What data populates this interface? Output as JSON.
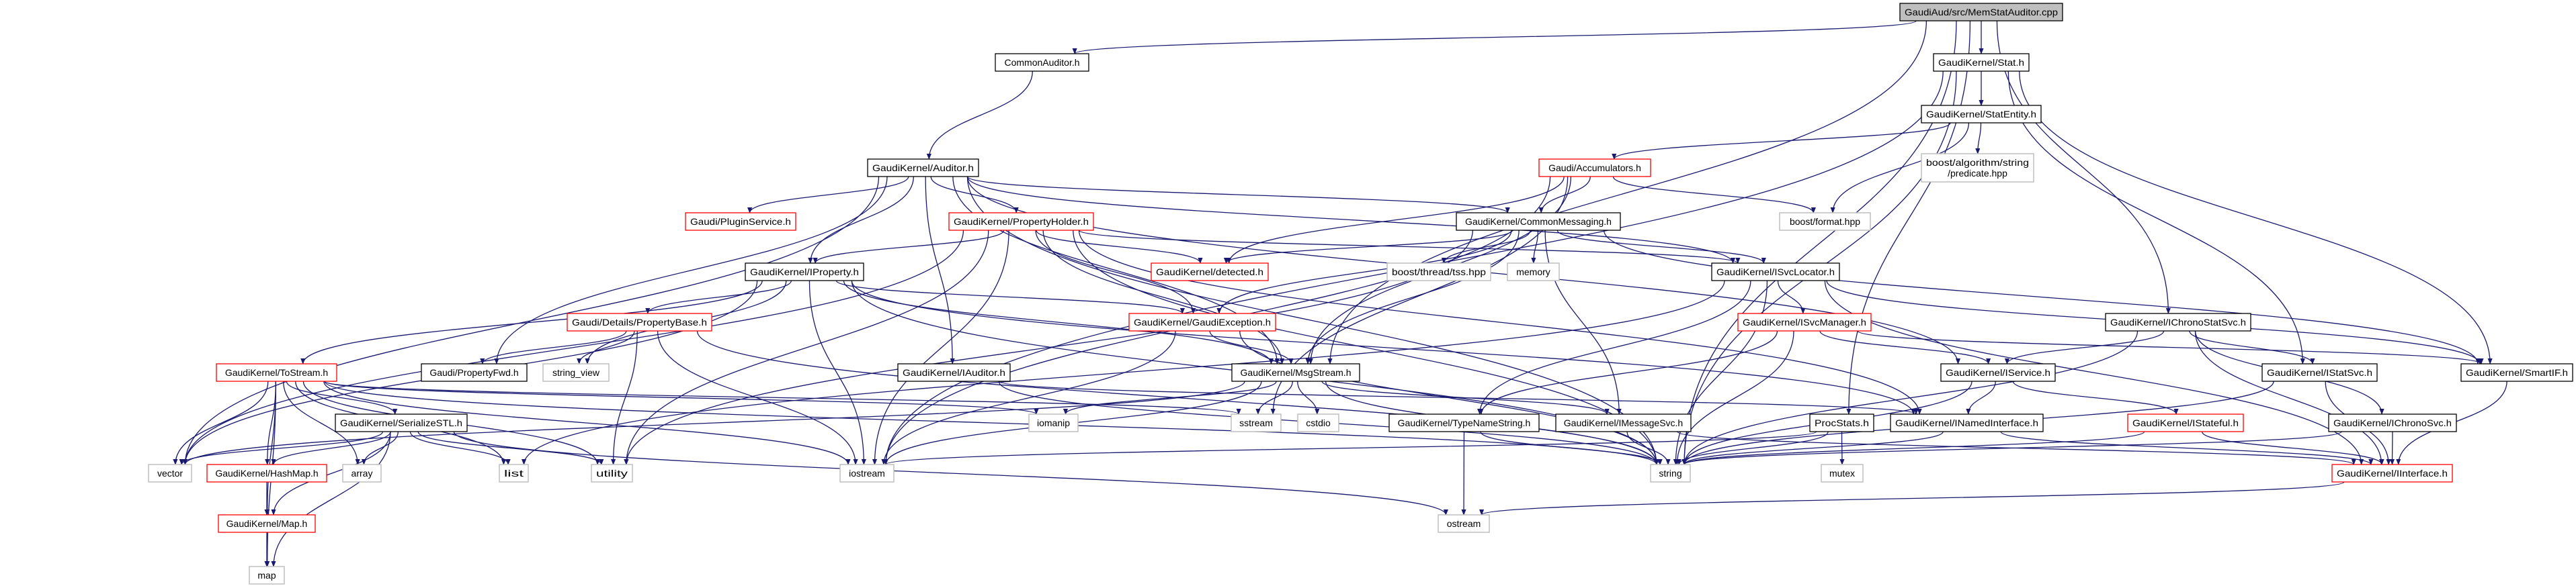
{
  "graph": {
    "colors": {
      "edge": "#191970",
      "root_fill": "#bfbfbf",
      "node_border": "#000000",
      "incomplete_border": "#ff0000",
      "external_border": "#bfbfbf"
    },
    "nodes": [
      {
        "id": "memstat",
        "label": "GaudiAud/src/MemStatAuditor.cpp",
        "kind": "root"
      },
      {
        "id": "commonauditor",
        "label": "CommonAuditor.h",
        "kind": "normal"
      },
      {
        "id": "stat",
        "label": "GaudiKernel/Stat.h",
        "kind": "normal"
      },
      {
        "id": "statentity",
        "label": "GaudiKernel/StatEntity.h",
        "kind": "normal"
      },
      {
        "id": "auditor",
        "label": "GaudiKernel/Auditor.h",
        "kind": "normal"
      },
      {
        "id": "accumulators",
        "label": "Gaudi/Accumulators.h",
        "kind": "incomplete"
      },
      {
        "id": "predicate",
        "label": "boost/algorithm/string\n/predicate.hpp",
        "kind": "external"
      },
      {
        "id": "pluginservice",
        "label": "Gaudi/PluginService.h",
        "kind": "incomplete"
      },
      {
        "id": "propertyholder",
        "label": "GaudiKernel/PropertyHolder.h",
        "kind": "incomplete"
      },
      {
        "id": "commonmessaging",
        "label": "GaudiKernel/CommonMessaging.h",
        "kind": "normal"
      },
      {
        "id": "boostformat",
        "label": "boost/format.hpp",
        "kind": "external"
      },
      {
        "id": "iproperty",
        "label": "GaudiKernel/IProperty.h",
        "kind": "normal"
      },
      {
        "id": "detected",
        "label": "GaudiKernel/detected.h",
        "kind": "incomplete"
      },
      {
        "id": "tss",
        "label": "boost/thread/tss.hpp",
        "kind": "external"
      },
      {
        "id": "memory",
        "label": "memory",
        "kind": "external"
      },
      {
        "id": "isvclocator",
        "label": "GaudiKernel/ISvcLocator.h",
        "kind": "normal"
      },
      {
        "id": "ichronostatsvc",
        "label": "GaudiKernel/IChronoStatSvc.h",
        "kind": "normal"
      },
      {
        "id": "propertybase",
        "label": "Gaudi/Details/PropertyBase.h",
        "kind": "incomplete"
      },
      {
        "id": "gaudiexception",
        "label": "GaudiKernel/GaudiException.h",
        "kind": "incomplete"
      },
      {
        "id": "isvcmanager",
        "label": "GaudiKernel/ISvcManager.h",
        "kind": "incomplete"
      },
      {
        "id": "tostream",
        "label": "GaudiKernel/ToStream.h",
        "kind": "incomplete"
      },
      {
        "id": "propertyfwd",
        "label": "Gaudi/PropertyFwd.h",
        "kind": "normal"
      },
      {
        "id": "string_view",
        "label": "string_view",
        "kind": "external"
      },
      {
        "id": "iauditor",
        "label": "GaudiKernel/IAuditor.h",
        "kind": "normal"
      },
      {
        "id": "msgstream",
        "label": "GaudiKernel/MsgStream.h",
        "kind": "normal"
      },
      {
        "id": "iservice",
        "label": "GaudiKernel/IService.h",
        "kind": "normal"
      },
      {
        "id": "istatsvc",
        "label": "GaudiKernel/IStatSvc.h",
        "kind": "normal"
      },
      {
        "id": "smartif",
        "label": "GaudiKernel/SmartIF.h",
        "kind": "normal"
      },
      {
        "id": "serializestl",
        "label": "GaudiKernel/SerializeSTL.h",
        "kind": "normal"
      },
      {
        "id": "iomanip",
        "label": "iomanip",
        "kind": "external"
      },
      {
        "id": "sstream",
        "label": "sstream",
        "kind": "external"
      },
      {
        "id": "cstdio",
        "label": "cstdio",
        "kind": "external"
      },
      {
        "id": "typenamestring",
        "label": "GaudiKernel/TypeNameString.h",
        "kind": "normal"
      },
      {
        "id": "imessagesvc",
        "label": "GaudiKernel/IMessageSvc.h",
        "kind": "normal"
      },
      {
        "id": "procstats",
        "label": "ProcStats.h",
        "kind": "normal"
      },
      {
        "id": "inamedinterface",
        "label": "GaudiKernel/INamedInterface.h",
        "kind": "normal"
      },
      {
        "id": "istateful",
        "label": "GaudiKernel/IStateful.h",
        "kind": "incomplete"
      },
      {
        "id": "ichronosvc",
        "label": "GaudiKernel/IChronoSvc.h",
        "kind": "normal"
      },
      {
        "id": "vector",
        "label": "vector",
        "kind": "external"
      },
      {
        "id": "hashmap",
        "label": "GaudiKernel/HashMap.h",
        "kind": "incomplete"
      },
      {
        "id": "array",
        "label": "array",
        "kind": "external"
      },
      {
        "id": "list",
        "label": "list",
        "kind": "external"
      },
      {
        "id": "utility",
        "label": "utility",
        "kind": "external"
      },
      {
        "id": "iostream",
        "label": "iostream",
        "kind": "external"
      },
      {
        "id": "string",
        "label": "string",
        "kind": "external"
      },
      {
        "id": "mutex",
        "label": "mutex",
        "kind": "external"
      },
      {
        "id": "iinterface",
        "label": "GaudiKernel/IInterface.h",
        "kind": "incomplete"
      },
      {
        "id": "map_h",
        "label": "GaudiKernel/Map.h",
        "kind": "incomplete"
      },
      {
        "id": "ostream",
        "label": "ostream",
        "kind": "external"
      },
      {
        "id": "map",
        "label": "map",
        "kind": "external"
      }
    ],
    "edges": [
      [
        "memstat",
        "commonauditor"
      ],
      [
        "memstat",
        "stat"
      ],
      [
        "memstat",
        "msgstream"
      ],
      [
        "memstat",
        "ichronostatsvc"
      ],
      [
        "memstat",
        "procstats"
      ],
      [
        "memstat",
        "string"
      ],
      [
        "commonauditor",
        "auditor"
      ],
      [
        "stat",
        "statentity"
      ],
      [
        "stat",
        "iostream"
      ],
      [
        "stat",
        "string"
      ],
      [
        "stat",
        "istatsvc"
      ],
      [
        "stat",
        "smartif"
      ],
      [
        "statentity",
        "accumulators"
      ],
      [
        "statentity",
        "predicate"
      ],
      [
        "statentity",
        "boostformat"
      ],
      [
        "accumulators",
        "commonmessaging"
      ],
      [
        "accumulators",
        "boostformat"
      ],
      [
        "accumulators",
        "detected"
      ],
      [
        "accumulators",
        "iostream"
      ],
      [
        "accumulators",
        "msgstream"
      ],
      [
        "accumulators",
        "sstream"
      ],
      [
        "auditor",
        "vector"
      ],
      [
        "auditor",
        "pluginservice"
      ],
      [
        "auditor",
        "propertyfwd"
      ],
      [
        "auditor",
        "iproperty"
      ],
      [
        "auditor",
        "propertyholder"
      ],
      [
        "auditor",
        "iauditor"
      ],
      [
        "auditor",
        "commonmessaging"
      ],
      [
        "auditor",
        "isvclocator"
      ],
      [
        "auditor",
        "iservice"
      ],
      [
        "auditor",
        "string"
      ],
      [
        "auditor",
        "msgstream"
      ],
      [
        "propertyholder",
        "iproperty"
      ],
      [
        "propertyholder",
        "detected"
      ],
      [
        "propertyholder",
        "gaudiexception"
      ],
      [
        "propertyholder",
        "msgstream"
      ],
      [
        "propertyholder",
        "inamedinterface"
      ],
      [
        "propertyholder",
        "iostream"
      ],
      [
        "propertyholder",
        "string"
      ],
      [
        "propertyholder",
        "utility"
      ],
      [
        "propertyholder",
        "isvclocator"
      ],
      [
        "propertyholder",
        "vector"
      ],
      [
        "commonmessaging",
        "detected"
      ],
      [
        "commonmessaging",
        "tss"
      ],
      [
        "commonmessaging",
        "memory"
      ],
      [
        "commonmessaging",
        "isvclocator"
      ],
      [
        "commonmessaging",
        "imessagesvc"
      ],
      [
        "commonmessaging",
        "msgstream"
      ],
      [
        "commonmessaging",
        "smartif"
      ],
      [
        "commonmessaging",
        "gaudiexception"
      ],
      [
        "commonmessaging",
        "utility"
      ],
      [
        "iproperty",
        "propertybase"
      ],
      [
        "iproperty",
        "tostream"
      ],
      [
        "iproperty",
        "vector"
      ],
      [
        "iproperty",
        "iostream"
      ],
      [
        "iproperty",
        "string"
      ],
      [
        "iproperty",
        "string_view"
      ],
      [
        "iproperty",
        "inamedinterface"
      ],
      [
        "iproperty",
        "msgstream"
      ],
      [
        "iproperty",
        "gaudiexception"
      ],
      [
        "isvclocator",
        "isvcmanager"
      ],
      [
        "isvclocator",
        "typenamestring"
      ],
      [
        "isvclocator",
        "smartif"
      ],
      [
        "isvclocator",
        "iinterface"
      ],
      [
        "isvclocator",
        "string"
      ],
      [
        "isvclocator",
        "list"
      ],
      [
        "propertybase",
        "propertyfwd"
      ],
      [
        "propertybase",
        "string_view"
      ],
      [
        "propertybase",
        "utility"
      ],
      [
        "propertybase",
        "iostream"
      ],
      [
        "propertybase",
        "string"
      ],
      [
        "gaudiexception",
        "msgstream"
      ],
      [
        "gaudiexception",
        "iostream"
      ],
      [
        "gaudiexception",
        "string"
      ],
      [
        "isvcmanager",
        "iservice"
      ],
      [
        "isvcmanager",
        "typenamestring"
      ],
      [
        "isvcmanager",
        "smartif"
      ],
      [
        "isvcmanager",
        "string"
      ],
      [
        "ichronostatsvc",
        "iservice"
      ],
      [
        "ichronostatsvc",
        "istatsvc"
      ],
      [
        "ichronostatsvc",
        "ichronosvc"
      ],
      [
        "ichronostatsvc",
        "string"
      ],
      [
        "ichronostatsvc",
        "iinterface"
      ],
      [
        "tostream",
        "serializestl"
      ],
      [
        "tostream",
        "vector"
      ],
      [
        "tostream",
        "hashmap"
      ],
      [
        "tostream",
        "array"
      ],
      [
        "tostream",
        "list"
      ],
      [
        "tostream",
        "utility"
      ],
      [
        "tostream",
        "map_h"
      ],
      [
        "tostream",
        "map"
      ],
      [
        "tostream",
        "iostream"
      ],
      [
        "tostream",
        "sstream"
      ],
      [
        "tostream",
        "string"
      ],
      [
        "tostream",
        "iomanip"
      ],
      [
        "iauditor",
        "inamedinterface"
      ],
      [
        "iauditor",
        "string"
      ],
      [
        "msgstream",
        "iomanip"
      ],
      [
        "msgstream",
        "sstream"
      ],
      [
        "msgstream",
        "cstdio"
      ],
      [
        "msgstream",
        "imessagesvc"
      ],
      [
        "msgstream",
        "string"
      ],
      [
        "msgstream",
        "iostream"
      ],
      [
        "msgstream",
        "vector"
      ],
      [
        "iservice",
        "inamedinterface"
      ],
      [
        "iservice",
        "istateful"
      ],
      [
        "iservice",
        "string"
      ],
      [
        "istatsvc",
        "iinterface"
      ],
      [
        "istatsvc",
        "string"
      ],
      [
        "smartif",
        "iinterface"
      ],
      [
        "serializestl",
        "vector"
      ],
      [
        "serializestl",
        "hashmap"
      ],
      [
        "serializestl",
        "array"
      ],
      [
        "serializestl",
        "list"
      ],
      [
        "serializestl",
        "utility"
      ],
      [
        "serializestl",
        "map_h"
      ],
      [
        "serializestl",
        "map"
      ],
      [
        "serializestl",
        "ostream"
      ],
      [
        "typenamestring",
        "ostream"
      ],
      [
        "typenamestring",
        "string"
      ],
      [
        "imessagesvc",
        "string"
      ],
      [
        "imessagesvc",
        "iinterface"
      ],
      [
        "inamedinterface",
        "iinterface"
      ],
      [
        "inamedinterface",
        "string"
      ],
      [
        "procstats",
        "mutex"
      ],
      [
        "procstats",
        "string"
      ],
      [
        "procstats",
        "iostream"
      ],
      [
        "istateful",
        "iinterface"
      ],
      [
        "istateful",
        "string"
      ],
      [
        "ichronosvc",
        "iinterface"
      ],
      [
        "ichronosvc",
        "string"
      ],
      [
        "hashmap",
        "map_h"
      ],
      [
        "map_h",
        "map"
      ],
      [
        "iinterface",
        "ostream"
      ]
    ]
  }
}
